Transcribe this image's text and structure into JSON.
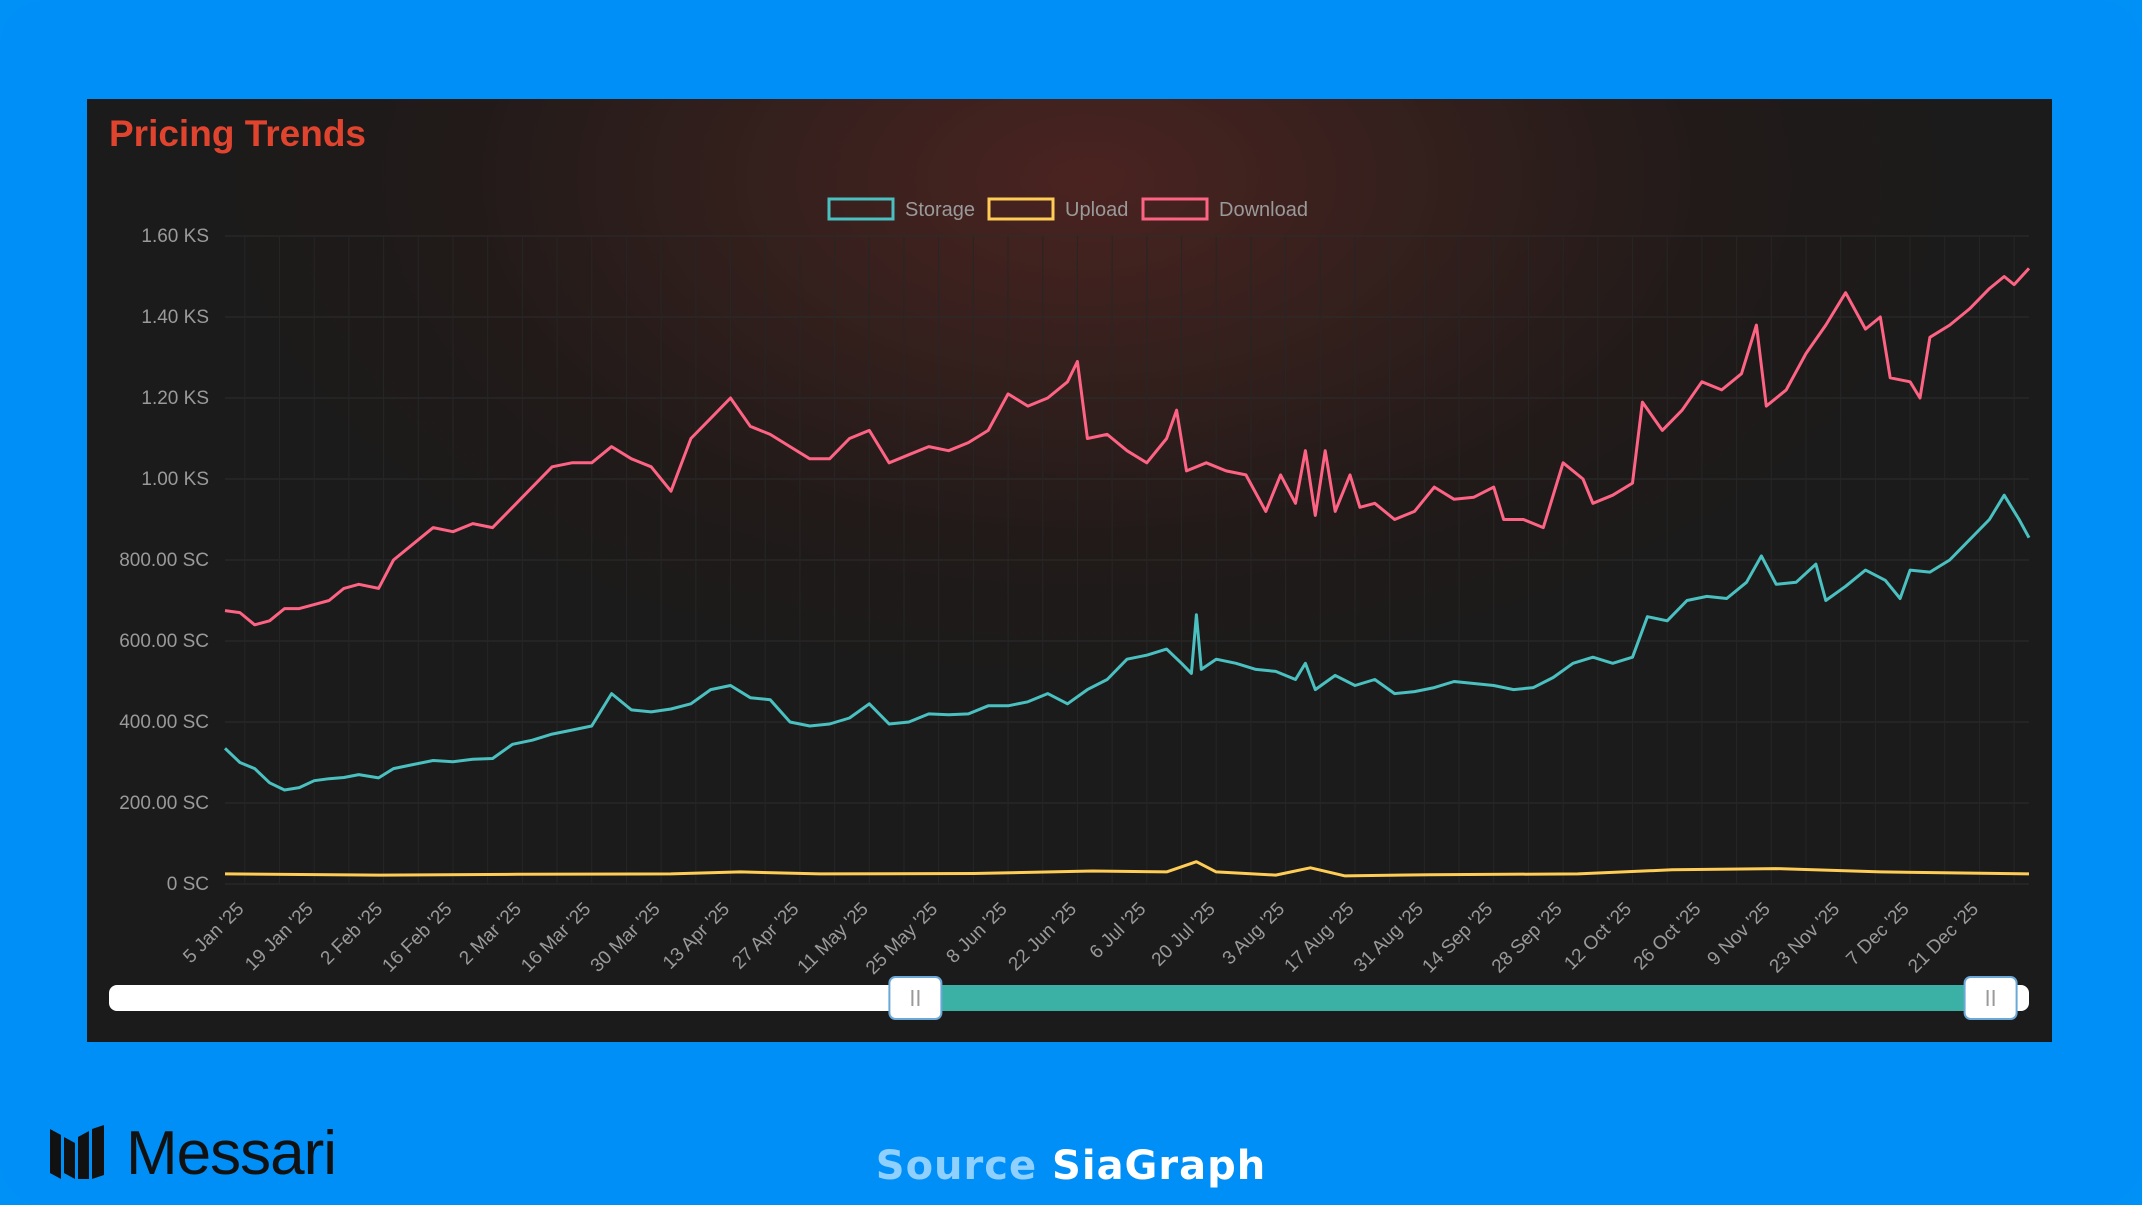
{
  "colors": {
    "storage": "#4bc0c0",
    "upload": "#ffcd56",
    "download": "#ff6384",
    "title": "#e0442e",
    "background": "#0091f7",
    "panel": "#1b1b1b",
    "slider_fill": "#3bb0a5"
  },
  "chart_data": {
    "type": "line",
    "title": "Pricing Trends",
    "legend": [
      "Storage",
      "Upload",
      "Download"
    ],
    "legend_position": "top-center",
    "grid": true,
    "y_tick_labels": [
      "0 SC",
      "200.00 SC",
      "400.00 SC",
      "600.00 SC",
      "800.00 SC",
      "1.00 KS",
      "1.20 KS",
      "1.40 KS",
      "1.60 KS"
    ],
    "y_ticks": [
      0,
      200,
      400,
      600,
      800,
      1000,
      1200,
      1400,
      1600
    ],
    "ylim": [
      0,
      1600
    ],
    "x_range": [
      "2025-01-01",
      "2025-12-31"
    ],
    "x_tick_labels": [
      "5 Jan '25",
      "19 Jan '25",
      "2 Feb '25",
      "16 Feb '25",
      "2 Mar '25",
      "16 Mar '25",
      "30 Mar '25",
      "13 Apr '25",
      "27 Apr '25",
      "11 May '25",
      "25 May '25",
      "8 Jun '25",
      "22 Jun '25",
      "6 Jul '25",
      "20 Jul '25",
      "3 Aug '25",
      "17 Aug '25",
      "31 Aug '25",
      "14 Sep '25",
      "28 Sep '25",
      "12 Oct '25",
      "26 Oct '25",
      "9 Nov '25",
      "23 Nov '25",
      "7 Dec '25",
      "21 Dec '25"
    ],
    "x_ticks": [
      "2025-01-05",
      "2025-01-19",
      "2025-02-02",
      "2025-02-16",
      "2025-03-02",
      "2025-03-16",
      "2025-03-30",
      "2025-04-13",
      "2025-04-27",
      "2025-05-11",
      "2025-05-25",
      "2025-06-08",
      "2025-06-22",
      "2025-07-06",
      "2025-07-20",
      "2025-08-03",
      "2025-08-17",
      "2025-08-31",
      "2025-09-14",
      "2025-09-28",
      "2025-10-12",
      "2025-10-26",
      "2025-11-09",
      "2025-11-23",
      "2025-12-07",
      "2025-12-21"
    ],
    "series": [
      {
        "name": "Storage",
        "unit": "SC",
        "points": [
          [
            "2025-01-01",
            335
          ],
          [
            "2025-01-04",
            300
          ],
          [
            "2025-01-07",
            285
          ],
          [
            "2025-01-10",
            250
          ],
          [
            "2025-01-13",
            232
          ],
          [
            "2025-01-16",
            238
          ],
          [
            "2025-01-19",
            255
          ],
          [
            "2025-01-22",
            260
          ],
          [
            "2025-01-25",
            263
          ],
          [
            "2025-01-28",
            270
          ],
          [
            "2025-02-01",
            262
          ],
          [
            "2025-02-04",
            285
          ],
          [
            "2025-02-08",
            295
          ],
          [
            "2025-02-12",
            305
          ],
          [
            "2025-02-16",
            302
          ],
          [
            "2025-02-20",
            308
          ],
          [
            "2025-02-24",
            310
          ],
          [
            "2025-02-28",
            345
          ],
          [
            "2025-03-04",
            355
          ],
          [
            "2025-03-08",
            370
          ],
          [
            "2025-03-12",
            380
          ],
          [
            "2025-03-16",
            390
          ],
          [
            "2025-03-20",
            470
          ],
          [
            "2025-03-24",
            430
          ],
          [
            "2025-03-28",
            425
          ],
          [
            "2025-04-01",
            432
          ],
          [
            "2025-04-05",
            445
          ],
          [
            "2025-04-09",
            480
          ],
          [
            "2025-04-13",
            490
          ],
          [
            "2025-04-17",
            460
          ],
          [
            "2025-04-21",
            455
          ],
          [
            "2025-04-25",
            400
          ],
          [
            "2025-04-29",
            390
          ],
          [
            "2025-05-03",
            395
          ],
          [
            "2025-05-07",
            410
          ],
          [
            "2025-05-11",
            445
          ],
          [
            "2025-05-15",
            395
          ],
          [
            "2025-05-19",
            400
          ],
          [
            "2025-05-23",
            420
          ],
          [
            "2025-05-27",
            418
          ],
          [
            "2025-05-31",
            420
          ],
          [
            "2025-06-04",
            440
          ],
          [
            "2025-06-08",
            440
          ],
          [
            "2025-06-12",
            450
          ],
          [
            "2025-06-16",
            470
          ],
          [
            "2025-06-20",
            445
          ],
          [
            "2025-06-24",
            480
          ],
          [
            "2025-06-28",
            505
          ],
          [
            "2025-07-02",
            555
          ],
          [
            "2025-07-06",
            565
          ],
          [
            "2025-07-10",
            580
          ],
          [
            "2025-07-13",
            545
          ],
          [
            "2025-07-15",
            520
          ],
          [
            "2025-07-16",
            665
          ],
          [
            "2025-07-17",
            530
          ],
          [
            "2025-07-20",
            555
          ],
          [
            "2025-07-24",
            545
          ],
          [
            "2025-07-28",
            530
          ],
          [
            "2025-08-01",
            525
          ],
          [
            "2025-08-05",
            505
          ],
          [
            "2025-08-07",
            545
          ],
          [
            "2025-08-09",
            480
          ],
          [
            "2025-08-13",
            515
          ],
          [
            "2025-08-17",
            490
          ],
          [
            "2025-08-21",
            505
          ],
          [
            "2025-08-25",
            470
          ],
          [
            "2025-08-29",
            475
          ],
          [
            "2025-09-02",
            485
          ],
          [
            "2025-09-06",
            500
          ],
          [
            "2025-09-10",
            495
          ],
          [
            "2025-09-14",
            490
          ],
          [
            "2025-09-18",
            480
          ],
          [
            "2025-09-22",
            485
          ],
          [
            "2025-09-26",
            510
          ],
          [
            "2025-09-30",
            545
          ],
          [
            "2025-10-04",
            560
          ],
          [
            "2025-10-08",
            545
          ],
          [
            "2025-10-12",
            560
          ],
          [
            "2025-10-15",
            660
          ],
          [
            "2025-10-19",
            650
          ],
          [
            "2025-10-23",
            700
          ],
          [
            "2025-10-27",
            710
          ],
          [
            "2025-10-31",
            705
          ],
          [
            "2025-11-04",
            745
          ],
          [
            "2025-11-07",
            810
          ],
          [
            "2025-11-10",
            740
          ],
          [
            "2025-11-14",
            745
          ],
          [
            "2025-11-18",
            790
          ],
          [
            "2025-11-20",
            700
          ],
          [
            "2025-11-24",
            735
          ],
          [
            "2025-11-28",
            775
          ],
          [
            "2025-12-02",
            750
          ],
          [
            "2025-12-05",
            705
          ],
          [
            "2025-12-07",
            775
          ],
          [
            "2025-12-11",
            770
          ],
          [
            "2025-12-15",
            800
          ],
          [
            "2025-12-19",
            850
          ],
          [
            "2025-12-23",
            900
          ],
          [
            "2025-12-26",
            960
          ],
          [
            "2025-12-29",
            900
          ],
          [
            "2025-12-31",
            855
          ]
        ]
      },
      {
        "name": "Upload",
        "unit": "SC",
        "points": [
          [
            "2025-01-01",
            25
          ],
          [
            "2025-02-01",
            22
          ],
          [
            "2025-03-01",
            24
          ],
          [
            "2025-04-01",
            25
          ],
          [
            "2025-04-15",
            30
          ],
          [
            "2025-05-01",
            25
          ],
          [
            "2025-06-01",
            26
          ],
          [
            "2025-06-25",
            32
          ],
          [
            "2025-07-10",
            30
          ],
          [
            "2025-07-16",
            55
          ],
          [
            "2025-07-20",
            30
          ],
          [
            "2025-08-01",
            22
          ],
          [
            "2025-08-08",
            40
          ],
          [
            "2025-08-15",
            20
          ],
          [
            "2025-09-01",
            23
          ],
          [
            "2025-10-01",
            25
          ],
          [
            "2025-10-20",
            35
          ],
          [
            "2025-11-10",
            38
          ],
          [
            "2025-12-01",
            30
          ],
          [
            "2025-12-31",
            25
          ]
        ]
      },
      {
        "name": "Download",
        "unit": "SC",
        "points": [
          [
            "2025-01-01",
            675
          ],
          [
            "2025-01-04",
            670
          ],
          [
            "2025-01-07",
            640
          ],
          [
            "2025-01-10",
            650
          ],
          [
            "2025-01-13",
            680
          ],
          [
            "2025-01-16",
            680
          ],
          [
            "2025-01-19",
            690
          ],
          [
            "2025-01-22",
            700
          ],
          [
            "2025-01-25",
            730
          ],
          [
            "2025-01-28",
            740
          ],
          [
            "2025-02-01",
            730
          ],
          [
            "2025-02-04",
            800
          ],
          [
            "2025-02-08",
            840
          ],
          [
            "2025-02-12",
            880
          ],
          [
            "2025-02-16",
            870
          ],
          [
            "2025-02-20",
            890
          ],
          [
            "2025-02-24",
            880
          ],
          [
            "2025-02-28",
            930
          ],
          [
            "2025-03-04",
            980
          ],
          [
            "2025-03-08",
            1030
          ],
          [
            "2025-03-12",
            1040
          ],
          [
            "2025-03-16",
            1040
          ],
          [
            "2025-03-20",
            1080
          ],
          [
            "2025-03-24",
            1050
          ],
          [
            "2025-03-28",
            1030
          ],
          [
            "2025-04-01",
            970
          ],
          [
            "2025-04-05",
            1100
          ],
          [
            "2025-04-09",
            1150
          ],
          [
            "2025-04-13",
            1200
          ],
          [
            "2025-04-17",
            1130
          ],
          [
            "2025-04-21",
            1110
          ],
          [
            "2025-04-25",
            1080
          ],
          [
            "2025-04-29",
            1050
          ],
          [
            "2025-05-03",
            1050
          ],
          [
            "2025-05-07",
            1100
          ],
          [
            "2025-05-11",
            1120
          ],
          [
            "2025-05-15",
            1040
          ],
          [
            "2025-05-19",
            1060
          ],
          [
            "2025-05-23",
            1080
          ],
          [
            "2025-05-27",
            1070
          ],
          [
            "2025-05-31",
            1090
          ],
          [
            "2025-06-04",
            1120
          ],
          [
            "2025-06-08",
            1210
          ],
          [
            "2025-06-12",
            1180
          ],
          [
            "2025-06-16",
            1200
          ],
          [
            "2025-06-20",
            1240
          ],
          [
            "2025-06-22",
            1290
          ],
          [
            "2025-06-24",
            1100
          ],
          [
            "2025-06-28",
            1110
          ],
          [
            "2025-07-02",
            1070
          ],
          [
            "2025-07-06",
            1040
          ],
          [
            "2025-07-10",
            1100
          ],
          [
            "2025-07-12",
            1170
          ],
          [
            "2025-07-14",
            1020
          ],
          [
            "2025-07-18",
            1040
          ],
          [
            "2025-07-22",
            1020
          ],
          [
            "2025-07-26",
            1010
          ],
          [
            "2025-07-30",
            920
          ],
          [
            "2025-08-02",
            1010
          ],
          [
            "2025-08-05",
            940
          ],
          [
            "2025-08-07",
            1070
          ],
          [
            "2025-08-09",
            910
          ],
          [
            "2025-08-11",
            1070
          ],
          [
            "2025-08-13",
            920
          ],
          [
            "2025-08-16",
            1010
          ],
          [
            "2025-08-18",
            930
          ],
          [
            "2025-08-21",
            940
          ],
          [
            "2025-08-25",
            900
          ],
          [
            "2025-08-29",
            920
          ],
          [
            "2025-09-02",
            980
          ],
          [
            "2025-09-06",
            950
          ],
          [
            "2025-09-10",
            955
          ],
          [
            "2025-09-14",
            980
          ],
          [
            "2025-09-16",
            900
          ],
          [
            "2025-09-20",
            900
          ],
          [
            "2025-09-24",
            880
          ],
          [
            "2025-09-28",
            1040
          ],
          [
            "2025-10-02",
            1000
          ],
          [
            "2025-10-04",
            940
          ],
          [
            "2025-10-08",
            960
          ],
          [
            "2025-10-12",
            990
          ],
          [
            "2025-10-14",
            1190
          ],
          [
            "2025-10-18",
            1120
          ],
          [
            "2025-10-22",
            1170
          ],
          [
            "2025-10-26",
            1240
          ],
          [
            "2025-10-30",
            1220
          ],
          [
            "2025-11-03",
            1260
          ],
          [
            "2025-11-06",
            1380
          ],
          [
            "2025-11-08",
            1180
          ],
          [
            "2025-11-12",
            1220
          ],
          [
            "2025-11-16",
            1310
          ],
          [
            "2025-11-20",
            1380
          ],
          [
            "2025-11-24",
            1460
          ],
          [
            "2025-11-28",
            1370
          ],
          [
            "2025-12-01",
            1400
          ],
          [
            "2025-12-03",
            1250
          ],
          [
            "2025-12-07",
            1240
          ],
          [
            "2025-12-09",
            1200
          ],
          [
            "2025-12-11",
            1350
          ],
          [
            "2025-12-15",
            1380
          ],
          [
            "2025-12-19",
            1420
          ],
          [
            "2025-12-23",
            1470
          ],
          [
            "2025-12-26",
            1500
          ],
          [
            "2025-12-28",
            1480
          ],
          [
            "2025-12-31",
            1520
          ]
        ]
      }
    ]
  },
  "range_slider": {
    "range_start": 0.42,
    "range_end": 0.98
  },
  "branding": {
    "brand_name": "Messari",
    "source_prefix": "Source",
    "source_name": "SiaGraph"
  }
}
